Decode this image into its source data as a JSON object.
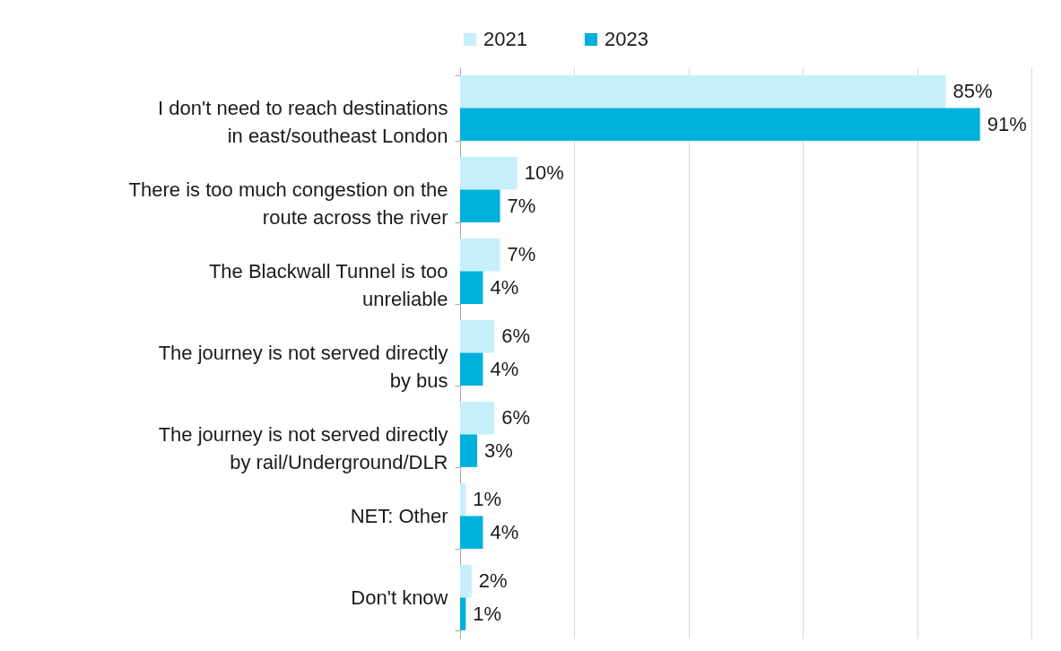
{
  "chart_data": {
    "type": "bar",
    "orientation": "horizontal",
    "categories": [
      "I don't need to reach destinations in east/southeast London",
      "There is too much congestion on the route across the river",
      "The Blackwall Tunnel is too unreliable",
      "The journey is not served directly by bus",
      "The journey is not served directly by rail/Underground/DLR",
      "NET: Other",
      "Don't know"
    ],
    "series": [
      {
        "name": "2021",
        "color": "#c5f0fb",
        "values": [
          85,
          10,
          7,
          6,
          6,
          1,
          2
        ],
        "value_labels": [
          "85%",
          "10%",
          "7%",
          "6%",
          "6%",
          "1%",
          "2%"
        ]
      },
      {
        "name": "2023",
        "color": "#00b0dc",
        "values": [
          91,
          7,
          4,
          4,
          3,
          4,
          1
        ],
        "value_labels": [
          "91%",
          "7%",
          "4%",
          "4%",
          "3%",
          "4%",
          "1%"
        ]
      }
    ],
    "xlim": [
      0,
      100
    ],
    "xticks": [
      {
        "value": 0,
        "label": null
      },
      {
        "value": 20,
        "label": null
      },
      {
        "value": 40,
        "label": null
      },
      {
        "value": 60,
        "label": null
      },
      {
        "value": 80,
        "label": null
      },
      {
        "value": 100,
        "label": null
      }
    ],
    "grid": "x",
    "legend": "top",
    "tick_labels": "y"
  }
}
